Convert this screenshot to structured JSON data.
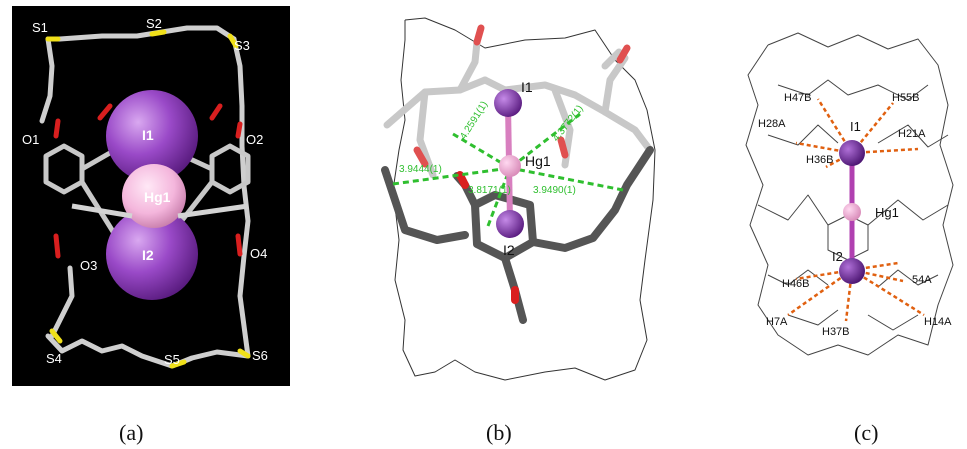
{
  "figure": {
    "captions": [
      "(a)",
      "(b)",
      "(c)"
    ],
    "panel_a": {
      "labels": [
        "S1",
        "S2",
        "S3",
        "O1",
        "O2",
        "O3",
        "O4",
        "S4",
        "S5",
        "S6",
        "I1",
        "Hg1",
        "I2"
      ]
    },
    "panel_b": {
      "atom_labels": [
        "I1",
        "Hg1",
        "I2"
      ],
      "distances": [
        "4.2591(1)",
        "4.3772(1)",
        "3.9444(1)",
        "3.8171(1)",
        "3.9490(1)"
      ]
    },
    "panel_c": {
      "labels": [
        "H47B",
        "H55B",
        "H28A",
        "I1",
        "H21A",
        "H36B",
        "Hg1",
        "I2",
        "H46B",
        "54A",
        "H7A",
        "H37B",
        "H14A"
      ]
    },
    "colors": {
      "sulfur": "#f0e01a",
      "oxygen": "#d91f1f",
      "iodine": "#7b2fa0",
      "mercury": "#f0a8d8",
      "contact_b": "#2fbf2f",
      "contact_c": "#e06010"
    }
  }
}
